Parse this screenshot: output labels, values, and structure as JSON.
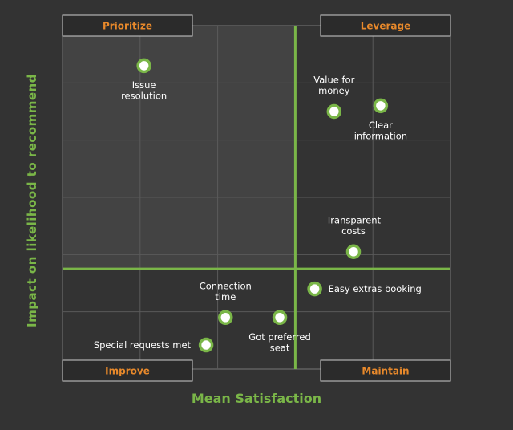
{
  "chart_data": {
    "type": "scatter",
    "xlabel": "Mean Satisfaction",
    "ylabel": "Impact on likelihood to recommend",
    "quadrants": {
      "top_left": "Prioritize",
      "top_right": "Leverage",
      "bottom_left": "Improve",
      "bottom_right": "Maintain"
    },
    "xlim": [
      0,
      5
    ],
    "ylim": [
      0,
      6
    ],
    "x_divider": 3,
    "y_divider": 1.75,
    "points": [
      {
        "label": [
          "Issue",
          "resolution"
        ],
        "x": 1.05,
        "y": 5.3,
        "label_pos": "below"
      },
      {
        "label": [
          "Value for",
          "money"
        ],
        "x": 3.5,
        "y": 4.5,
        "label_pos": "above"
      },
      {
        "label": [
          "Clear",
          "information"
        ],
        "x": 4.1,
        "y": 4.6,
        "label_pos": "below"
      },
      {
        "label": [
          "Transparent",
          "costs"
        ],
        "x": 3.75,
        "y": 2.05,
        "label_pos": "above"
      },
      {
        "label": [
          "Easy extras booking"
        ],
        "x": 3.25,
        "y": 1.4,
        "label_pos": "right"
      },
      {
        "label": [
          "Connection",
          "time"
        ],
        "x": 2.1,
        "y": 0.9,
        "label_pos": "above"
      },
      {
        "label": [
          "Got preferred",
          "seat"
        ],
        "x": 2.8,
        "y": 0.9,
        "label_pos": "below"
      },
      {
        "label": [
          "Special requests met"
        ],
        "x": 1.85,
        "y": 0.42,
        "label_pos": "left"
      }
    ],
    "colors": {
      "background": "#333333",
      "prioritize_fill": "#434343",
      "accent_green": "#7ab648",
      "quadrant_label": "#e8892b",
      "label_box": "#2b2b2b",
      "grid": "#5a5a5a",
      "point_fill": "#ffffff",
      "text": "#ffffff"
    }
  }
}
